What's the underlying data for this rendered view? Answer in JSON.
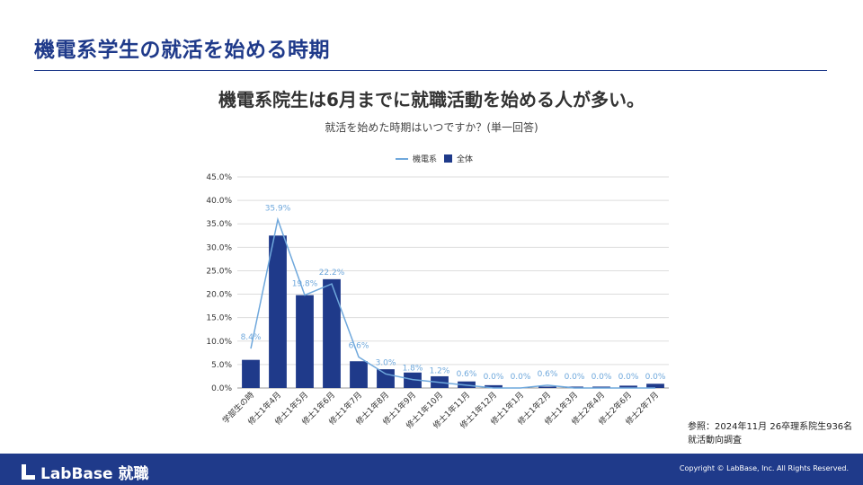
{
  "page": {
    "title": "機電系学生の就活を始める時期",
    "headline": "機電系院生は6月までに就職活動を始める人が多い。",
    "note_lines": [
      "参照：2024年11月 26卒理系院生936名",
      "就活動向調査"
    ]
  },
  "footer": {
    "logo_text": "LabBase 就職",
    "copyright": "Copyright © LabBase, Inc. All Rights Reserved."
  },
  "colors": {
    "primary": "#1f3a8a",
    "line": "#6fa8dc",
    "grid": "#dddddd"
  },
  "chart_data": {
    "type": "bar",
    "title": "就活を始めた時期はいつですか？(単一回答)",
    "categories": [
      "学部生の時",
      "修士1年4月",
      "修士1年5月",
      "修士1年6月",
      "修士1年7月",
      "修士1年8月",
      "修士1年9月",
      "修士1年10月",
      "修士1年11月",
      "修士1年12月",
      "修士1年1月",
      "修士1年2月",
      "修士1年3月",
      "修士2年4月",
      "修士2年6月",
      "修士2年7月"
    ],
    "series": [
      {
        "name": "機電系",
        "kind": "line",
        "values": [
          8.4,
          35.9,
          19.8,
          22.2,
          6.6,
          3.0,
          1.8,
          1.2,
          0.6,
          0.0,
          0.0,
          0.6,
          0.0,
          0.0,
          0.0,
          0.0
        ]
      },
      {
        "name": "全体",
        "kind": "bar",
        "values": [
          6.0,
          32.5,
          19.8,
          23.2,
          5.7,
          4.0,
          3.3,
          2.5,
          1.4,
          0.6,
          0.1,
          0.3,
          0.3,
          0.3,
          0.5,
          0.9
        ]
      }
    ],
    "data_labels": [
      "8.4%",
      "35.9%",
      "19.8%",
      "22.2%",
      "6.6%",
      "3.0%",
      "1.8%",
      "1.2%",
      "0.6%",
      "0.0%",
      "0.0%",
      "0.6%",
      "0.0%",
      "0.0%",
      "0.0%",
      "0.0%"
    ],
    "y_ticks": [
      "0.0%",
      "5.0%",
      "10.0%",
      "15.0%",
      "20.0%",
      "25.0%",
      "30.0%",
      "35.0%",
      "40.0%",
      "45.0%"
    ],
    "ylim": [
      0,
      45
    ],
    "grid": true,
    "legend_placement": "top-center"
  }
}
